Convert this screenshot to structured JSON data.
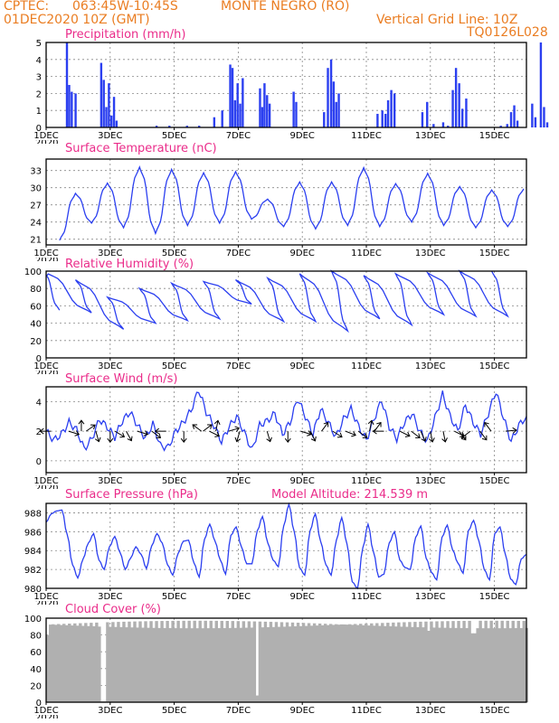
{
  "header": {
    "source": "CPTEC:",
    "coords": "063:45W-10:45S",
    "location": "MONTE NEGRO (RO)",
    "init": "01DEC2020 10Z (GMT)",
    "grid_line": "Vertical Grid Line: 10Z",
    "run_id": "TQ0126L028"
  },
  "colors": {
    "title": "#ea2c8a",
    "header": "#ea7d22",
    "series": "#2b3ff0",
    "cloud": "#b0b0b0"
  },
  "x_axis": {
    "labels": [
      "1DEC",
      "3DEC",
      "5DEC",
      "7DEC",
      "9DEC",
      "11DEC",
      "13DEC",
      "15DEC"
    ],
    "label_days": [
      0,
      2,
      4,
      6,
      8,
      10,
      12,
      14
    ],
    "year_fragment": "2020",
    "range_days": [
      0,
      15
    ]
  },
  "chart_data": [
    {
      "type": "bar",
      "title": "Precipitation  (mm/h)",
      "ylim": [
        0,
        5
      ],
      "yticks": [
        0,
        1,
        2,
        3,
        4,
        5
      ],
      "grid": true,
      "events": [
        {
          "d": 0.65,
          "v": 5.0
        },
        {
          "d": 0.72,
          "v": 2.5
        },
        {
          "d": 0.8,
          "v": 2.1
        },
        {
          "d": 0.92,
          "v": 2.0
        },
        {
          "d": 1.72,
          "v": 3.8
        },
        {
          "d": 1.8,
          "v": 2.8
        },
        {
          "d": 1.88,
          "v": 1.2
        },
        {
          "d": 1.96,
          "v": 2.6
        },
        {
          "d": 2.04,
          "v": 0.7
        },
        {
          "d": 2.12,
          "v": 1.8
        },
        {
          "d": 2.2,
          "v": 0.4
        },
        {
          "d": 3.45,
          "v": 0.1
        },
        {
          "d": 3.85,
          "v": 0.1
        },
        {
          "d": 4.4,
          "v": 0.1
        },
        {
          "d": 4.78,
          "v": 0.1
        },
        {
          "d": 5.25,
          "v": 0.6
        },
        {
          "d": 5.5,
          "v": 1.0
        },
        {
          "d": 5.75,
          "v": 3.7
        },
        {
          "d": 5.82,
          "v": 3.5
        },
        {
          "d": 5.9,
          "v": 1.6
        },
        {
          "d": 5.98,
          "v": 2.6
        },
        {
          "d": 6.06,
          "v": 1.4
        },
        {
          "d": 6.14,
          "v": 2.9
        },
        {
          "d": 6.68,
          "v": 2.3
        },
        {
          "d": 6.75,
          "v": 1.2
        },
        {
          "d": 6.82,
          "v": 2.6
        },
        {
          "d": 6.9,
          "v": 1.9
        },
        {
          "d": 6.98,
          "v": 1.4
        },
        {
          "d": 7.73,
          "v": 2.1
        },
        {
          "d": 7.81,
          "v": 1.5
        },
        {
          "d": 8.68,
          "v": 0.9
        },
        {
          "d": 8.8,
          "v": 3.5
        },
        {
          "d": 8.9,
          "v": 4.0
        },
        {
          "d": 8.98,
          "v": 2.7
        },
        {
          "d": 9.06,
          "v": 1.5
        },
        {
          "d": 9.14,
          "v": 2.0
        },
        {
          "d": 10.35,
          "v": 0.8
        },
        {
          "d": 10.5,
          "v": 1.0
        },
        {
          "d": 10.6,
          "v": 0.8
        },
        {
          "d": 10.68,
          "v": 1.6
        },
        {
          "d": 10.78,
          "v": 2.2
        },
        {
          "d": 10.88,
          "v": 2.0
        },
        {
          "d": 11.75,
          "v": 0.9
        },
        {
          "d": 11.9,
          "v": 1.5
        },
        {
          "d": 12.1,
          "v": 0.2
        },
        {
          "d": 12.4,
          "v": 0.3
        },
        {
          "d": 12.55,
          "v": 0.1
        },
        {
          "d": 12.7,
          "v": 2.2
        },
        {
          "d": 12.8,
          "v": 3.5
        },
        {
          "d": 12.9,
          "v": 2.6
        },
        {
          "d": 13.0,
          "v": 1.1
        },
        {
          "d": 13.12,
          "v": 1.7
        },
        {
          "d": 14.2,
          "v": 0.1
        },
        {
          "d": 14.4,
          "v": 0.2
        },
        {
          "d": 14.52,
          "v": 0.9
        },
        {
          "d": 14.62,
          "v": 1.3
        },
        {
          "d": 14.72,
          "v": 0.4
        },
        {
          "d": 15.18,
          "v": 1.4
        },
        {
          "d": 15.28,
          "v": 0.6
        },
        {
          "d": 15.45,
          "v": 5.0
        },
        {
          "d": 15.55,
          "v": 1.2
        },
        {
          "d": 15.65,
          "v": 0.3
        }
      ]
    },
    {
      "type": "line",
      "title": "Surface Temperature  (nC)",
      "ylim": [
        20,
        35
      ],
      "yticks": [
        21,
        24,
        27,
        30,
        33
      ],
      "grid": true,
      "minima": [
        20.8,
        23.8,
        23.0,
        22.0,
        23.4,
        23.8,
        24.5,
        23.2,
        22.8,
        23.4,
        23.2,
        24.0,
        23.4,
        23.0,
        23.2
      ],
      "maxima": [
        29.0,
        30.8,
        33.6,
        33.2,
        32.6,
        32.8,
        28.0,
        31.0,
        31.0,
        33.5,
        30.7,
        32.5,
        30.2,
        29.6,
        29.8
      ]
    },
    {
      "type": "line",
      "title": "Relative Humidity  (%)",
      "ylim": [
        0,
        100
      ],
      "yticks": [
        0,
        20,
        40,
        60,
        80,
        100
      ],
      "grid": true,
      "minima": [
        55.0,
        52.0,
        33.0,
        40.0,
        43.0,
        45.0,
        62.0,
        42.0,
        42.0,
        31.0,
        45.0,
        38.0,
        50.0,
        48.0,
        48.0
      ],
      "maxima": [
        100.0,
        90.0,
        70.0,
        80.0,
        86.0,
        88.0,
        90.0,
        92.0,
        97.0,
        100.0,
        95.0,
        97.0,
        98.0,
        100.0,
        100.0
      ]
    },
    {
      "type": "line",
      "title": "Surface Wind  (m/s)",
      "ylim": [
        -0.8,
        5.0
      ],
      "yticks": [
        0,
        2,
        4
      ],
      "grid": true,
      "speeds": [
        2.0,
        1.4,
        1.8,
        2.6,
        2.1,
        0.8,
        1.5,
        2.8,
        2.3,
        1.6,
        2.7,
        3.3,
        2.4,
        1.5,
        2.5,
        1.0,
        0.9,
        2.0,
        2.6,
        3.4,
        4.8,
        3.3,
        2.4,
        1.3,
        2.3,
        3.0,
        1.9,
        0.7,
        2.4,
        2.7,
        3.2,
        1.8,
        2.6,
        4.2,
        3.0,
        1.8,
        3.5,
        2.6,
        1.6,
        2.8,
        3.5,
        2.3,
        1.4,
        2.8,
        4.1,
        2.3,
        1.5,
        2.6,
        3.2,
        2.0,
        1.3,
        2.9,
        4.5,
        3.0,
        2.0,
        3.8,
        2.6,
        1.8,
        3.2,
        4.7,
        2.9,
        1.3,
        2.4,
        3.0
      ],
      "arrows": [
        {
          "d": 0.15,
          "dx": -1,
          "dy": 0
        },
        {
          "d": 0.7,
          "dx": 1,
          "dy": 0.3
        },
        {
          "d": 1.1,
          "dx": 0,
          "dy": -1
        },
        {
          "d": 1.25,
          "dx": 1,
          "dy": -0.7
        },
        {
          "d": 1.55,
          "dx": 0.3,
          "dy": 1
        },
        {
          "d": 2.0,
          "dx": 0,
          "dy": 1
        },
        {
          "d": 2.15,
          "dx": 1,
          "dy": 0.6
        },
        {
          "d": 2.5,
          "dx": 0.5,
          "dy": 0.9
        },
        {
          "d": 2.85,
          "dx": 1,
          "dy": 0.3
        },
        {
          "d": 3.3,
          "dx": 0.8,
          "dy": 0.6
        },
        {
          "d": 3.75,
          "dx": -1,
          "dy": 0
        },
        {
          "d": 4.3,
          "dx": 0,
          "dy": 1
        },
        {
          "d": 4.85,
          "dx": -0.8,
          "dy": -0.6
        },
        {
          "d": 4.9,
          "dx": 0.8,
          "dy": -0.6
        },
        {
          "d": 5.1,
          "dx": 1,
          "dy": 0.5
        },
        {
          "d": 5.3,
          "dx": 0.2,
          "dy": -1
        },
        {
          "d": 5.7,
          "dx": 1,
          "dy": -0.3
        },
        {
          "d": 6.05,
          "dx": -0.3,
          "dy": 1
        },
        {
          "d": 6.9,
          "dx": 0.3,
          "dy": 1
        },
        {
          "d": 7.55,
          "dx": 0,
          "dy": 1
        },
        {
          "d": 7.95,
          "dx": 1,
          "dy": 0.3
        },
        {
          "d": 8.25,
          "dx": 0.5,
          "dy": 1
        },
        {
          "d": 8.6,
          "dx": 0.6,
          "dy": -0.8
        },
        {
          "d": 8.95,
          "dx": 0.8,
          "dy": 0.5
        },
        {
          "d": 9.35,
          "dx": 1,
          "dy": 0.4
        },
        {
          "d": 9.75,
          "dx": 0.8,
          "dy": 0.6
        },
        {
          "d": 10.1,
          "dx": 0.2,
          "dy": -1
        },
        {
          "d": 10.25,
          "dx": 0.6,
          "dy": -0.8
        },
        {
          "d": 10.55,
          "dx": -1,
          "dy": 0
        },
        {
          "d": 11.05,
          "dx": 1,
          "dy": 0.5
        },
        {
          "d": 11.4,
          "dx": 0.8,
          "dy": 0.6
        },
        {
          "d": 11.7,
          "dx": 0.4,
          "dy": 0.9
        },
        {
          "d": 12.0,
          "dx": 0.2,
          "dy": 1
        },
        {
          "d": 12.4,
          "dx": 0.2,
          "dy": 1
        },
        {
          "d": 12.75,
          "dx": 1,
          "dy": 0.5
        },
        {
          "d": 12.9,
          "dx": 0.6,
          "dy": 0.8
        },
        {
          "d": 13.25,
          "dx": -0.8,
          "dy": 0.6
        },
        {
          "d": 13.55,
          "dx": 0.6,
          "dy": 0.8
        },
        {
          "d": 13.9,
          "dx": -0.6,
          "dy": -0.8
        },
        {
          "d": 14.35,
          "dx": 1,
          "dy": -0.1
        }
      ]
    },
    {
      "type": "line",
      "title": "Surface Pressure  (hPa)",
      "annotation": "Model Altitude:  214.539  m",
      "ylim": [
        980,
        989
      ],
      "yticks": [
        980,
        982,
        984,
        986,
        988
      ],
      "grid": true,
      "hourly_series": [
        987.0,
        987.9,
        988.2,
        988.3,
        985.7,
        982.5,
        981.1,
        983.1,
        984.8,
        985.8,
        983.0,
        982.0,
        984.4,
        985.5,
        983.8,
        982.0,
        983.2,
        984.4,
        983.6,
        982.1,
        984.5,
        985.8,
        984.8,
        982.5,
        981.4,
        983.7,
        985.0,
        985.1,
        982.7,
        981.2,
        985.2,
        986.8,
        985.0,
        983.0,
        981.5,
        985.6,
        986.5,
        984.4,
        982.6,
        982.6,
        986.1,
        987.6,
        984.8,
        983.0,
        982.3,
        986.6,
        988.9,
        986.0,
        982.2,
        981.4,
        986.1,
        987.9,
        985.0,
        982.5,
        981.4,
        985.1,
        987.5,
        984.7,
        980.7,
        980.0,
        984.3,
        986.8,
        983.9,
        981.2,
        981.5,
        984.8,
        986.0,
        983.0,
        982.2,
        982.0,
        985.4,
        986.6,
        983.2,
        981.7,
        980.9,
        985.4,
        986.7,
        984.1,
        982.7,
        981.6,
        986.1,
        987.2,
        985.0,
        982.0,
        980.9,
        985.8,
        986.5,
        983.6,
        981.0,
        980.4,
        983.1,
        983.6
      ]
    },
    {
      "type": "bar",
      "title": "Cloud Cover  (%)",
      "ylim": [
        0,
        100
      ],
      "yticks": [
        0,
        20,
        40,
        60,
        80,
        100
      ],
      "grid": true,
      "dips": [
        {
          "d": 0.0,
          "v": 80
        },
        {
          "d": 1.6,
          "v": 90
        },
        {
          "d": 1.75,
          "v": 1
        },
        {
          "d": 6.55,
          "v": 8
        },
        {
          "d": 11.9,
          "v": 85
        },
        {
          "d": 13.3,
          "v": 82
        }
      ],
      "typical_range": [
        88,
        97
      ]
    }
  ]
}
